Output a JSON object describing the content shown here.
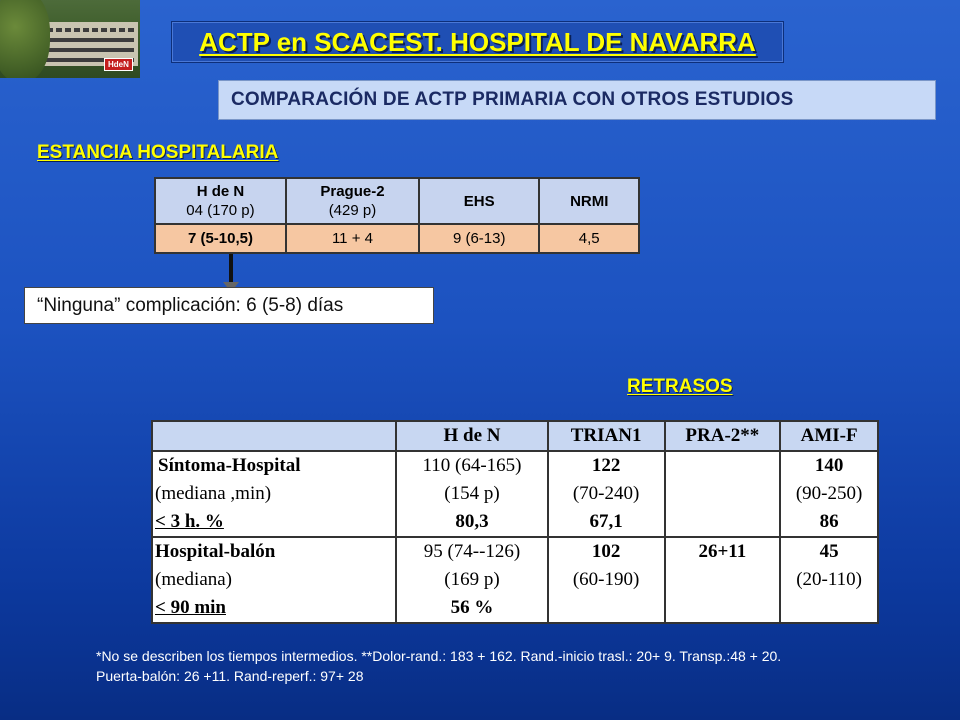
{
  "logo": {
    "badge": "HdeN"
  },
  "title": "ACTP en SCACEST. HOSPITAL DE NAVARRA",
  "subtitle": "COMPARACIÓN DE ACTP PRIMARIA CON OTROS ESTUDIOS",
  "estancia": {
    "heading": "ESTANCIA HOSPITALARIA",
    "columns": [
      {
        "name": "H de N",
        "sub": "04 (170 p)"
      },
      {
        "name": "Prague-2",
        "sub": "(429 p)"
      },
      {
        "name": "EHS",
        "sub": ""
      },
      {
        "name": "NRMI",
        "sub": ""
      }
    ],
    "values": [
      "7 (5-10,5)",
      "11 + 4",
      "9 (6-13)",
      "4,5"
    ],
    "complication_note": "“Ninguna” complicación: 6 (5-8) días"
  },
  "retrasos": {
    "heading": "RETRASOS",
    "headers": [
      "",
      "H de N",
      "TRIAN1",
      "PRA-2**",
      "AMI-F"
    ],
    "rows": [
      {
        "label": [
          "Síntoma-Hospital",
          "(mediana ,min)",
          "< 3 h. %"
        ],
        "hden": [
          "110 (64-165)",
          "(154 p)",
          "80,3"
        ],
        "trian1": [
          "122",
          "(70-240)",
          "67,1"
        ],
        "pra2": [
          "",
          "",
          ""
        ],
        "amif": [
          "140",
          "(90-250)",
          "86"
        ]
      },
      {
        "label": [
          "Hospital-balón",
          "(mediana)",
          "< 90 min"
        ],
        "hden": [
          "95 (74--126)",
          "(169 p)",
          "56 %"
        ],
        "trian1": [
          "102",
          "(60-190)",
          ""
        ],
        "pra2": [
          "26+11",
          "",
          ""
        ],
        "amif": [
          "45",
          "(20-110)",
          ""
        ]
      }
    ]
  },
  "footnote": {
    "line1": "*No se describen los tiempos intermedios. **Dolor-rand.: 183 + 162. Rand.-inicio trasl.: 20+ 9. Transp.:48 + 20.",
    "line2": "Puerta-balón: 26 +11. Rand-reperf.: 97+ 28"
  }
}
